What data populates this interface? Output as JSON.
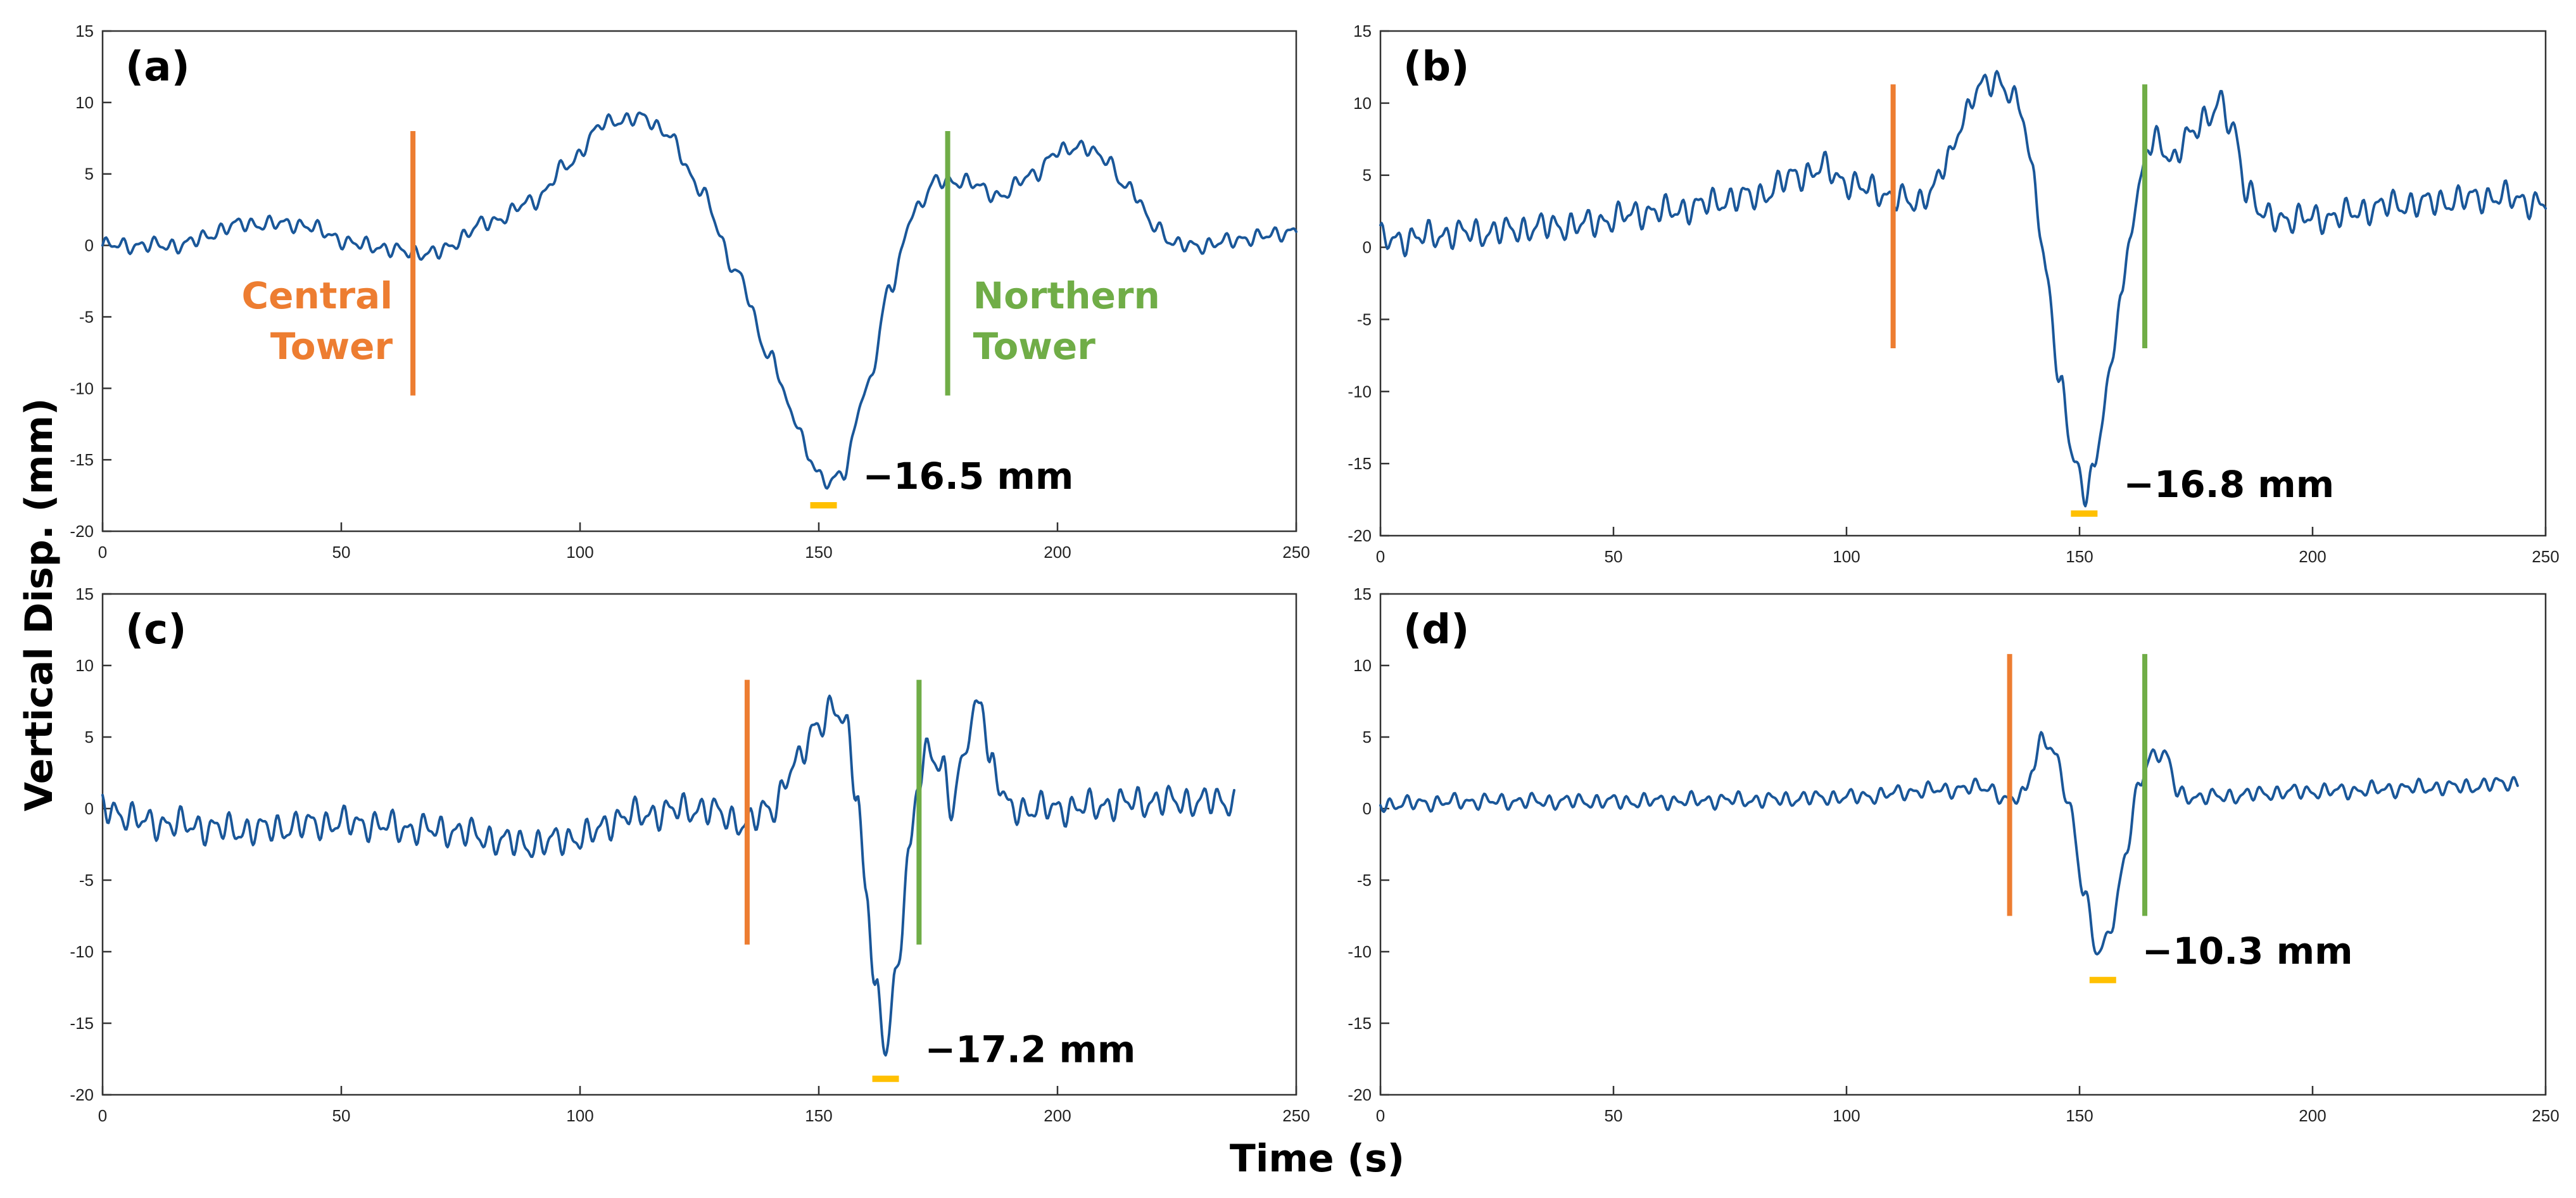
{
  "figure": {
    "xlabel": "Time (s)",
    "ylabel": "Vertical Disp. (mm)"
  },
  "colors": {
    "series": "#1a5799",
    "central_tower": "#ed7d31",
    "northern_tower": "#70ad47",
    "peak_marker": "#ffc000"
  },
  "chart_data": [
    {
      "type": "line",
      "panel": "(a)",
      "xlim": [
        0,
        250
      ],
      "ylim": [
        -20,
        15
      ],
      "xticks": [
        0,
        50,
        100,
        150,
        200,
        250
      ],
      "yticks": [
        -20,
        -15,
        -10,
        -5,
        0,
        5,
        10,
        15
      ],
      "x_end": 250,
      "keypoints": [
        [
          0,
          0
        ],
        [
          15,
          0
        ],
        [
          30,
          1.5
        ],
        [
          40,
          1.5
        ],
        [
          55,
          0
        ],
        [
          65,
          -0.5
        ],
        [
          70,
          -0.5
        ],
        [
          80,
          1.5
        ],
        [
          90,
          3
        ],
        [
          97,
          5.5
        ],
        [
          105,
          8.5
        ],
        [
          112,
          9
        ],
        [
          118,
          8
        ],
        [
          125,
          4
        ],
        [
          133,
          -2
        ],
        [
          140,
          -8
        ],
        [
          145,
          -12
        ],
        [
          148,
          -15
        ],
        [
          151,
          -16.5
        ],
        [
          155,
          -16
        ],
        [
          160,
          -10
        ],
        [
          165,
          -3
        ],
        [
          170,
          2.5
        ],
        [
          175,
          4.5
        ],
        [
          180,
          4.5
        ],
        [
          188,
          3.5
        ],
        [
          195,
          5
        ],
        [
          200,
          6.5
        ],
        [
          205,
          7
        ],
        [
          210,
          6
        ],
        [
          215,
          4
        ],
        [
          220,
          1.5
        ],
        [
          225,
          0
        ],
        [
          230,
          0
        ],
        [
          240,
          0.5
        ],
        [
          250,
          1
        ]
      ],
      "noise": 0.6,
      "central_tower": {
        "x": 65,
        "y_bottom": -10.5,
        "y_top": 8,
        "label": [
          "Central",
          "Tower"
        ]
      },
      "northern_tower": {
        "x": 177,
        "y_bottom": -10.5,
        "y_top": 8,
        "label": [
          "Northern",
          "Tower"
        ]
      },
      "peak": {
        "x": 151,
        "y": -16.5,
        "label": "−16.5 mm"
      }
    },
    {
      "type": "line",
      "panel": "(b)",
      "xlim": [
        0,
        250
      ],
      "ylim": [
        -20,
        15
      ],
      "xticks": [
        0,
        50,
        100,
        150,
        200,
        250
      ],
      "yticks": [
        -20,
        -15,
        -10,
        -5,
        0,
        5,
        10,
        15
      ],
      "x_end": 250,
      "keypoints": [
        [
          0,
          0.5
        ],
        [
          20,
          1
        ],
        [
          40,
          1.5
        ],
        [
          60,
          2.5
        ],
        [
          80,
          3.5
        ],
        [
          90,
          5
        ],
        [
          95,
          5.5
        ],
        [
          100,
          4.5
        ],
        [
          105,
          4
        ],
        [
          110,
          3.5
        ],
        [
          115,
          3
        ],
        [
          118,
          4
        ],
        [
          122,
          6
        ],
        [
          125,
          9
        ],
        [
          128,
          11
        ],
        [
          133,
          11.5
        ],
        [
          137,
          10
        ],
        [
          140,
          5
        ],
        [
          143,
          -2
        ],
        [
          146,
          -10
        ],
        [
          149,
          -15
        ],
        [
          151,
          -16.8
        ],
        [
          153,
          -15.5
        ],
        [
          156,
          -10
        ],
        [
          159,
          -3
        ],
        [
          162,
          3
        ],
        [
          165,
          7
        ],
        [
          167,
          7.5
        ],
        [
          170,
          6
        ],
        [
          173,
          7.5
        ],
        [
          177,
          9
        ],
        [
          180,
          10
        ],
        [
          183,
          8
        ],
        [
          186,
          4
        ],
        [
          190,
          2
        ],
        [
          200,
          2
        ],
        [
          220,
          3
        ],
        [
          240,
          3.5
        ],
        [
          250,
          3
        ]
      ],
      "noise": 1.1,
      "central_tower": {
        "x": 110,
        "y_bottom": -7,
        "y_top": 11.3
      },
      "northern_tower": {
        "x": 164,
        "y_bottom": -7,
        "y_top": 11.3
      },
      "peak": {
        "x": 151,
        "y": -16.8,
        "label": "−16.8 mm"
      }
    },
    {
      "type": "line",
      "panel": "(c)",
      "xlim": [
        0,
        250
      ],
      "ylim": [
        -20,
        15
      ],
      "xticks": [
        0,
        50,
        100,
        150,
        200,
        250
      ],
      "yticks": [
        -20,
        -15,
        -10,
        -5,
        0,
        5,
        10,
        15
      ],
      "x_end": 237,
      "keypoints": [
        [
          0,
          0
        ],
        [
          10,
          -1
        ],
        [
          30,
          -1.5
        ],
        [
          50,
          -1
        ],
        [
          70,
          -1.5
        ],
        [
          90,
          -2.5
        ],
        [
          100,
          -2
        ],
        [
          110,
          -0.5
        ],
        [
          125,
          0
        ],
        [
          135,
          -1
        ],
        [
          140,
          0
        ],
        [
          145,
          3
        ],
        [
          150,
          6
        ],
        [
          153,
          7
        ],
        [
          156,
          5.5
        ],
        [
          158,
          1
        ],
        [
          160,
          -6
        ],
        [
          162,
          -13
        ],
        [
          164,
          -17
        ],
        [
          166,
          -12
        ],
        [
          169,
          -3
        ],
        [
          171,
          2
        ],
        [
          173,
          4
        ],
        [
          176,
          3
        ],
        [
          178,
          0
        ],
        [
          180,
          3
        ],
        [
          182,
          6
        ],
        [
          184,
          8
        ],
        [
          186,
          3
        ],
        [
          190,
          0
        ],
        [
          200,
          0
        ],
        [
          220,
          0.5
        ],
        [
          237,
          0.5
        ]
      ],
      "noise": 1.2,
      "central_tower": {
        "x": 135,
        "y_bottom": -9.5,
        "y_top": 9
      },
      "northern_tower": {
        "x": 171,
        "y_bottom": -9.5,
        "y_top": 9
      },
      "peak": {
        "x": 164,
        "y": -17.2,
        "label": "−17.2 mm"
      }
    },
    {
      "type": "line",
      "panel": "(d)",
      "xlim": [
        0,
        250
      ],
      "ylim": [
        -20,
        15
      ],
      "xticks": [
        0,
        50,
        100,
        150,
        200,
        250
      ],
      "yticks": [
        -20,
        -15,
        -10,
        -5,
        0,
        5,
        10,
        15
      ],
      "x_end": 244,
      "keypoints": [
        [
          0,
          0.3
        ],
        [
          20,
          0.5
        ],
        [
          50,
          0.5
        ],
        [
          80,
          0.6
        ],
        [
          100,
          0.8
        ],
        [
          120,
          1.3
        ],
        [
          130,
          1.5
        ],
        [
          135,
          0.5
        ],
        [
          138,
          1
        ],
        [
          140,
          3
        ],
        [
          142,
          5
        ],
        [
          145,
          3.5
        ],
        [
          148,
          0
        ],
        [
          151,
          -6
        ],
        [
          154,
          -10.3
        ],
        [
          157,
          -8
        ],
        [
          160,
          -3
        ],
        [
          163,
          2
        ],
        [
          166,
          4
        ],
        [
          169,
          3.5
        ],
        [
          171,
          1
        ],
        [
          175,
          0.8
        ],
        [
          200,
          1.2
        ],
        [
          230,
          1.5
        ],
        [
          244,
          1.8
        ]
      ],
      "noise": 0.6,
      "central_tower": {
        "x": 135,
        "y_bottom": -7.5,
        "y_top": 10.8
      },
      "northern_tower": {
        "x": 164,
        "y_bottom": -7.5,
        "y_top": 10.8
      },
      "peak": {
        "x": 155,
        "y": -10.3,
        "label": "−10.3 mm"
      }
    }
  ]
}
